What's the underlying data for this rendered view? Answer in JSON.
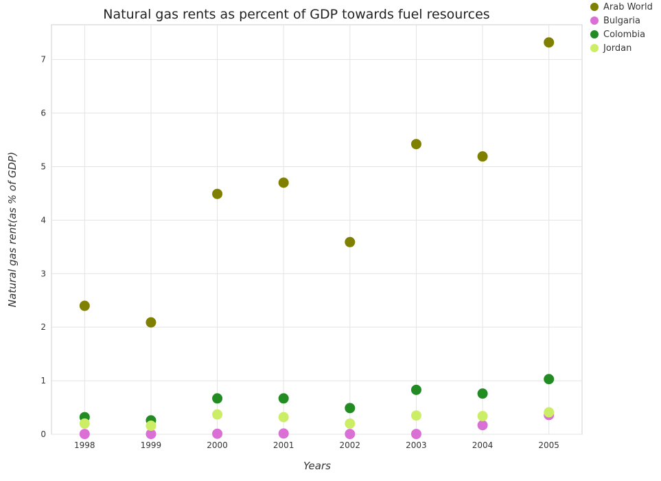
{
  "chart_data": {
    "type": "scatter",
    "title": "Natural gas rents as percent of GDP towards fuel resources",
    "xlabel": "Years",
    "ylabel": "Natural gas rent(as % of GDP)",
    "categories": [
      "1998",
      "1999",
      "2000",
      "2001",
      "2002",
      "2003",
      "2004",
      "2005"
    ],
    "ylim": [
      0,
      7.65
    ],
    "yticks": [
      "0",
      "1",
      "2",
      "3",
      "4",
      "5",
      "6",
      "7"
    ],
    "grid": true,
    "legend_position": "top-right",
    "series": [
      {
        "name": "Arab World",
        "color": "#808000",
        "values": [
          2.4,
          2.09,
          4.49,
          4.7,
          3.59,
          5.42,
          5.19,
          7.32
        ]
      },
      {
        "name": "Bulgaria",
        "color": "#da70d6",
        "values": [
          0.005,
          0.005,
          0.01,
          0.015,
          0.005,
          0.005,
          0.17,
          0.36
        ]
      },
      {
        "name": "Colombia",
        "color": "#228b22",
        "values": [
          0.32,
          0.26,
          0.67,
          0.67,
          0.49,
          0.83,
          0.76,
          1.03
        ]
      },
      {
        "name": "Jordan",
        "color": "#ccee66",
        "values": [
          0.2,
          0.16,
          0.37,
          0.32,
          0.2,
          0.35,
          0.34,
          0.41
        ]
      }
    ]
  }
}
